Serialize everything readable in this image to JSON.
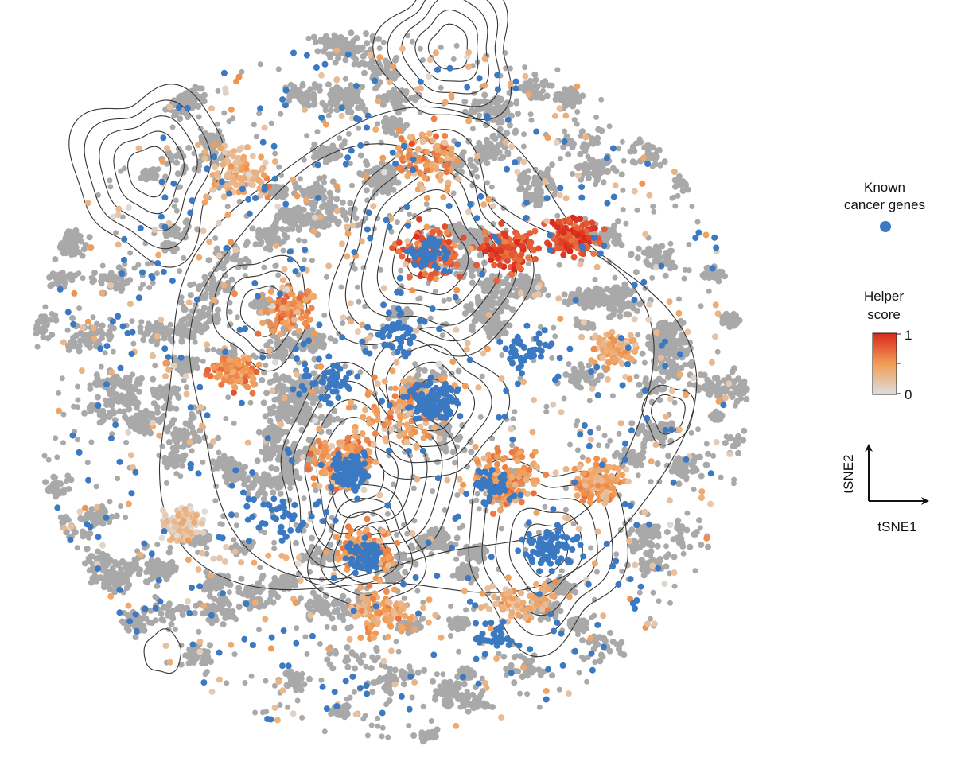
{
  "chart_data": {
    "type": "scatter",
    "title": "",
    "xlabel": "",
    "ylabel": "",
    "description_of_marks": "t-SNE embedding of genes with density contours",
    "colors": {
      "background_point": "#a9a9a9",
      "known_cancer_gene": "#3b79c2",
      "helper_scale": [
        "#dedede",
        "#f29d55",
        "#d9281c"
      ],
      "contour": "#333333"
    },
    "legend": {
      "known_label_line1": "Known",
      "known_label_line2": "cancer genes",
      "helper_label_line1": "Helper",
      "helper_label_line2": "score",
      "helper_max_label": "1",
      "helper_min_label": "0",
      "helper_range": [
        0,
        1
      ]
    },
    "axes_glyph": {
      "x_label": "tSNE1",
      "y_label": "tSNE2"
    }
  }
}
